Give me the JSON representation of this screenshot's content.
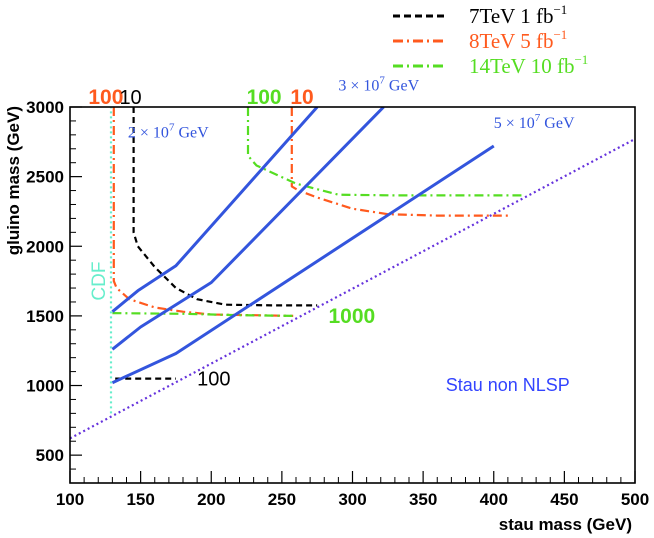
{
  "chart_data": {
    "type": "line",
    "title": "",
    "xlabel": "stau mass (GeV)",
    "ylabel": "gluino mass (GeV)",
    "xlim": [
      100,
      500
    ],
    "ylim": [
      300,
      3000
    ],
    "xticks": [
      "100",
      "150",
      "200",
      "250",
      "300",
      "350",
      "400",
      "450",
      "500"
    ],
    "yticks": [
      "500",
      "1000",
      "1500",
      "2000",
      "2500",
      "3000"
    ],
    "legend": {
      "placement": "top-right",
      "entries": [
        {
          "label": "7TeV 1 fb",
          "sup": "−1",
          "color": "#000000",
          "style": "dashed"
        },
        {
          "label": "8TeV 5 fb",
          "sup": "−1",
          "color": "#ff5a1e",
          "style": "dashdot"
        },
        {
          "label": "14TeV 10 fb",
          "sup": "−1",
          "color": "#55dd22",
          "style": "dashdot"
        }
      ]
    },
    "series": [
      {
        "color": "#000000",
        "style": "dashed",
        "x": [
          145,
          145,
          148,
          160,
          175,
          190,
          210,
          245,
          275
        ],
        "y": [
          3000,
          2100,
          2000,
          1850,
          1700,
          1620,
          1580,
          1575,
          1575
        ]
      },
      {
        "color": "#000000",
        "style": "dashed",
        "x": [
          132,
          175
        ],
        "y": [
          1050,
          1050
        ]
      },
      {
        "color": "#ff5a1e",
        "style": "dashdot",
        "x": [
          131,
          131,
          133,
          142,
          160,
          180,
          200,
          230,
          258
        ],
        "y": [
          3000,
          1750,
          1700,
          1620,
          1560,
          1530,
          1510,
          1505,
          1500
        ]
      },
      {
        "color": "#ff5a1e",
        "style": "dashdot",
        "x": [
          257,
          257,
          262,
          275,
          300,
          325,
          360,
          410
        ],
        "y": [
          3000,
          2430,
          2400,
          2350,
          2270,
          2230,
          2220,
          2220
        ]
      },
      {
        "color": "#55dd22",
        "style": "dashdot",
        "x": [
          226,
          226,
          232,
          260,
          290,
          330,
          380,
          420
        ],
        "y": [
          3000,
          2650,
          2580,
          2450,
          2370,
          2365,
          2365,
          2365
        ]
      },
      {
        "color": "#55dd22",
        "style": "dashdot",
        "x": [
          130,
          180,
          220,
          258
        ],
        "y": [
          1520,
          1515,
          1505,
          1500
        ]
      },
      {
        "color": "#3355dd",
        "style": "solid",
        "x": [
          130,
          148,
          175,
          275
        ],
        "y": [
          1530,
          1680,
          1860,
          3000
        ]
      },
      {
        "color": "#3355dd",
        "style": "solid",
        "x": [
          130,
          150,
          200,
          322
        ],
        "y": [
          1260,
          1420,
          1740,
          3000
        ]
      },
      {
        "color": "#3355dd",
        "style": "solid",
        "x": [
          130,
          175,
          400
        ],
        "y": [
          1020,
          1230,
          2720
        ]
      },
      {
        "color": "#6633dd",
        "style": "dotted",
        "x": [
          100,
          500
        ],
        "y": [
          620,
          2770
        ]
      },
      {
        "color": "#66eecc",
        "style": "dotted",
        "x": [
          129,
          129
        ],
        "y": [
          800,
          3000
        ]
      }
    ],
    "annotations": [
      {
        "text": "100",
        "color": "#ff5a1e",
        "x": 113,
        "y": 3000
      },
      {
        "text": "10",
        "color": "#000000",
        "x": 135,
        "y": 3000
      },
      {
        "text": "100",
        "color": "#55dd22",
        "x": 225,
        "y": 3000
      },
      {
        "text": "10",
        "color": "#ff5a1e",
        "x": 256,
        "y": 3000
      },
      {
        "text": "1000",
        "color": "#55dd22",
        "x": 283,
        "y": 1500
      },
      {
        "text": "100",
        "color": "#000000",
        "x": 190,
        "y": 1050
      },
      {
        "text": "CDF",
        "color": "#66eecc",
        "x": 122,
        "y": 1750
      },
      {
        "text": "Stau non NLSP",
        "color": "#3344ff",
        "x": 366,
        "y": 960
      },
      {
        "text": "2 × 10",
        "sup": "7",
        "suffix": " GeV",
        "color": "#3355dd",
        "x": 141,
        "y": 2780
      },
      {
        "text": "3 × 10",
        "sup": "7",
        "suffix": " GeV",
        "color": "#3355dd",
        "x": 290,
        "y": 3120
      },
      {
        "text": "5 × 10",
        "sup": "7",
        "suffix": " GeV",
        "color": "#3355dd",
        "x": 400,
        "y": 2850
      }
    ]
  }
}
